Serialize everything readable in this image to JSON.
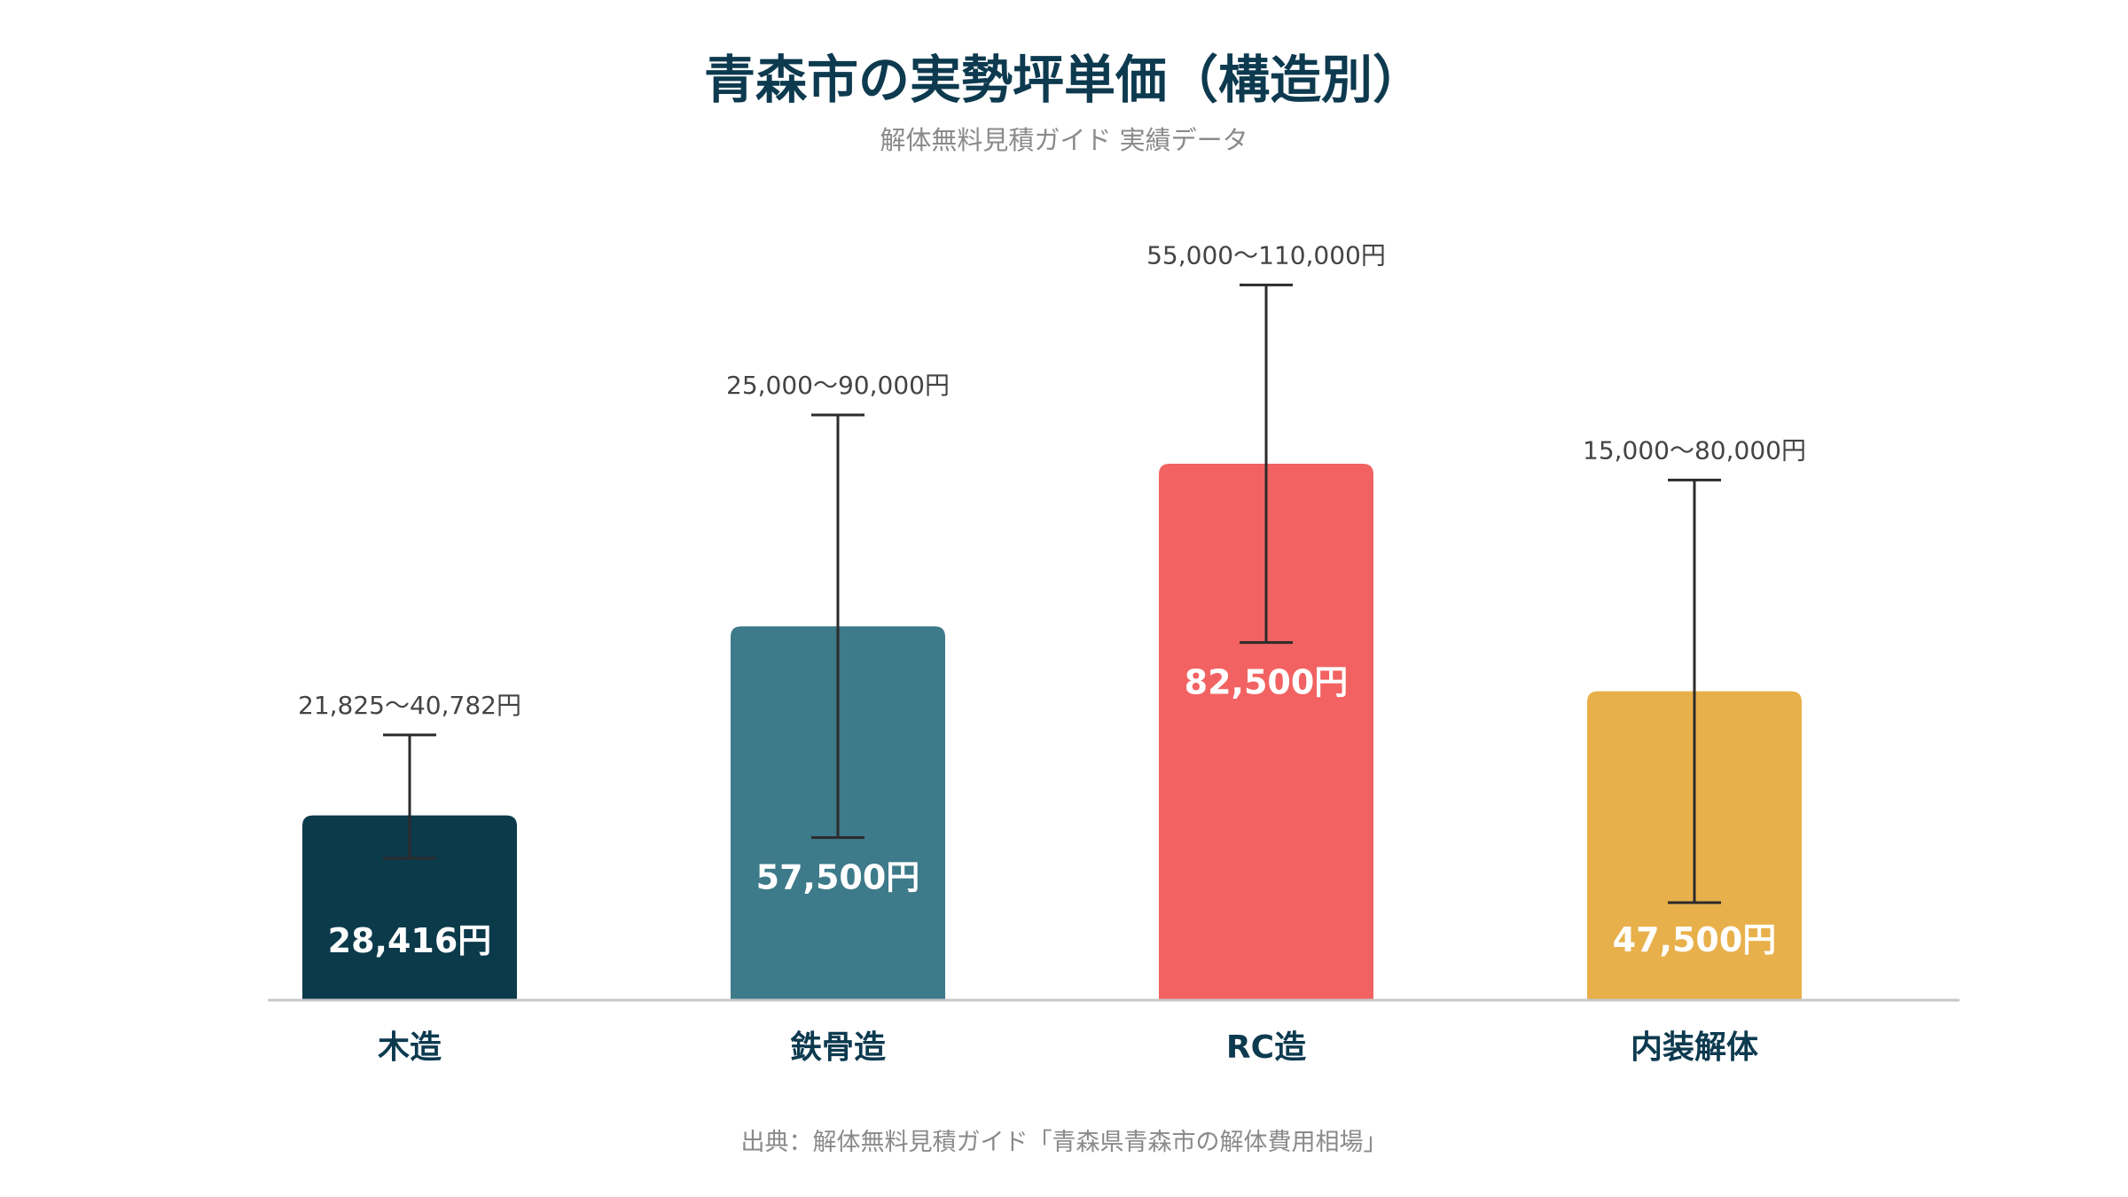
{
  "chart_data": {
    "type": "bar",
    "title": "青森市の実勢坪単価（構造別）",
    "subtitle": "解体無料見積ガイド 実績データ",
    "source": "出典：解体無料見積ガイド「青森県青森市の解体費用相場」",
    "categories": [
      "木造",
      "鉄骨造",
      "RC造",
      "内装解体"
    ],
    "values": [
      28416,
      57500,
      82500,
      47500
    ],
    "value_labels": [
      "28,416円",
      "57,500円",
      "82,500円",
      "47,500円"
    ],
    "ranges": [
      [
        21825,
        40782
      ],
      [
        25000,
        90000
      ],
      [
        55000,
        110000
      ],
      [
        15000,
        80000
      ]
    ],
    "range_labels": [
      "21,825〜40,782円",
      "25,000〜90,000円",
      "55,000〜110,000円",
      "15,000〜80,000円"
    ],
    "colors": [
      "#0b3a4b",
      "#3d7a8a",
      "#f26262",
      "#e8b04b"
    ],
    "ylim": [
      0,
      120000
    ],
    "grid": false,
    "xlabel": "",
    "ylabel": ""
  }
}
